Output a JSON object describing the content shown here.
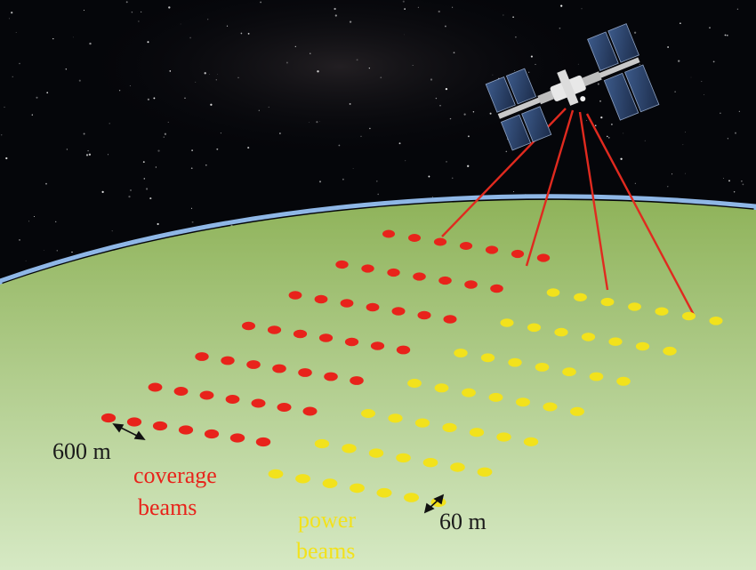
{
  "labels": {
    "coverage_spacing": "600 m",
    "coverage_line1": "coverage",
    "coverage_line2": "beams",
    "power_line1": "power",
    "power_line2": "beams",
    "power_spacing": "60 m"
  },
  "colors": {
    "coverage_beam": "#e8231b",
    "power_beam": "#f2e21c",
    "beam_link": "#e02a1f",
    "ground_top": "#8fb35a",
    "ground_bottom": "#d6e9c4",
    "horizon": "#8fb7e6",
    "space": "#05060a",
    "label_text": "#1a1a1a"
  },
  "grid": {
    "coverage_rows": 7,
    "coverage_cols": 7,
    "power_rows": 7,
    "power_cols": 7,
    "linked_beams": 4
  },
  "icons": {
    "satellite": "space-station-icon",
    "spacing_arrow": "double-arrow-icon"
  }
}
